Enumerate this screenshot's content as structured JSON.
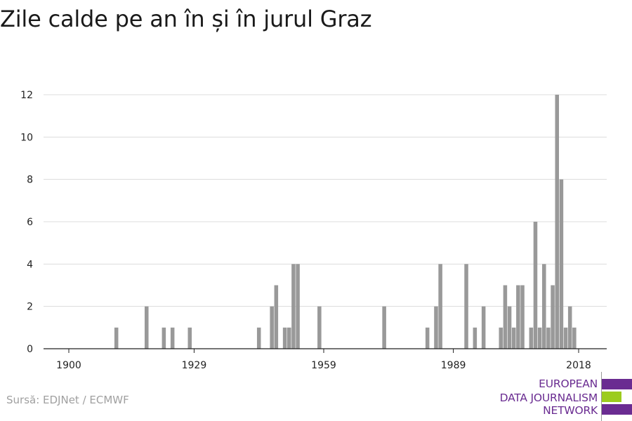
{
  "title": "Zile calde pe an în și în jurul Graz",
  "source": "Sursă: EDJNet / ECMWF",
  "logo": {
    "lines": [
      "EUROPEAN",
      "DATA JOURNALISM",
      "NETWORK"
    ],
    "colors": {
      "purple": "#6a2c91",
      "green": "#9ccc1e"
    }
  },
  "chart_data": {
    "type": "bar",
    "title": "Zile calde pe an în și în jurul Graz",
    "xlabel": "",
    "ylabel": "",
    "xlim": [
      1900,
      2018
    ],
    "ylim": [
      0,
      12
    ],
    "xticks": [
      1900,
      1929,
      1959,
      1989,
      2018
    ],
    "yticks": [
      0,
      2,
      4,
      6,
      8,
      10,
      12
    ],
    "grid": true,
    "bar_color": "#999999",
    "x": [
      1911,
      1918,
      1922,
      1924,
      1928,
      1944,
      1947,
      1948,
      1950,
      1951,
      1952,
      1953,
      1958,
      1973,
      1983,
      1985,
      1986,
      1992,
      1994,
      1996,
      2000,
      2001,
      2002,
      2003,
      2004,
      2005,
      2007,
      2008,
      2009,
      2010,
      2011,
      2012,
      2013,
      2014,
      2015,
      2016,
      2017
    ],
    "values": [
      1,
      2,
      1,
      1,
      1,
      1,
      2,
      3,
      1,
      1,
      4,
      4,
      2,
      2,
      1,
      2,
      4,
      4,
      1,
      2,
      1,
      3,
      2,
      1,
      3,
      3,
      1,
      6,
      1,
      4,
      1,
      3,
      12,
      8,
      1,
      2,
      1
    ]
  }
}
